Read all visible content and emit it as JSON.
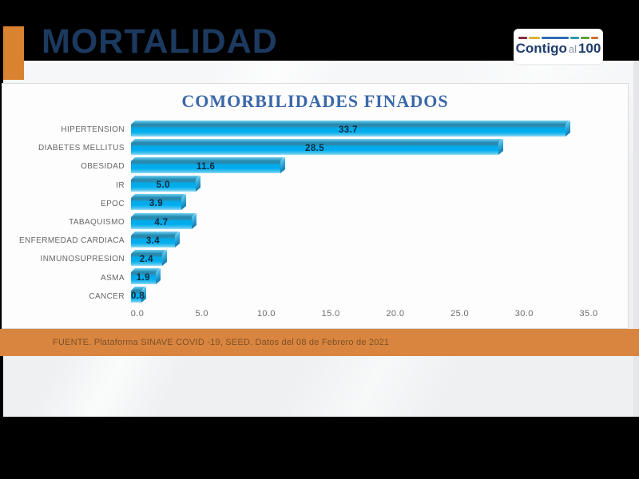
{
  "header": {
    "title": "MORTALIDAD",
    "logo": {
      "word1": "Contigo",
      "word2": "al",
      "word3": "100",
      "dash_colors": [
        "#8a2c3e",
        "#dfb13c",
        "#2f6cb3",
        "#2e9aa8",
        "#5ea03c",
        "#d0702f"
      ],
      "dash_widths": [
        11,
        14,
        34,
        11,
        11,
        9
      ]
    },
    "accent_color": "#d9822f",
    "title_color": "#1c3a60"
  },
  "chart_data": {
    "type": "bar",
    "orientation": "horizontal",
    "title": "COMORBILIDADES FINADOS",
    "title_color": "#3a67a8",
    "categories": [
      "HIPERTENSION",
      "DIABETES MELLITUS",
      "OBESIDAD",
      "IR",
      "EPOC",
      "TABAQUISMO",
      "ENFERMEDAD CARDIACA",
      "INMUNOSUPRESION",
      "ASMA",
      "CANCER"
    ],
    "values": [
      33.7,
      28.5,
      11.6,
      5.0,
      3.9,
      4.7,
      3.4,
      2.4,
      1.9,
      0.8
    ],
    "data_labels": [
      "33.7",
      "28.5",
      "11.6",
      "5.0",
      "3.9",
      "4.7",
      "3.4",
      "2.4",
      "1.9",
      "0.8"
    ],
    "xlim": [
      0,
      35
    ],
    "x_ticks": [
      "0.0",
      "5.0",
      "10.0",
      "15.0",
      "20.0",
      "25.0",
      "30.0",
      "35.0"
    ],
    "bar_color": "#00aeef",
    "grid": false,
    "legend": false,
    "xlabel": "",
    "ylabel": ""
  },
  "footer": {
    "source_text": "FUENTE. Plataforma SINAVE COVID -19, SEED. Datos del 08 de Febrero de 2021",
    "bar_color": "#d9853f"
  }
}
